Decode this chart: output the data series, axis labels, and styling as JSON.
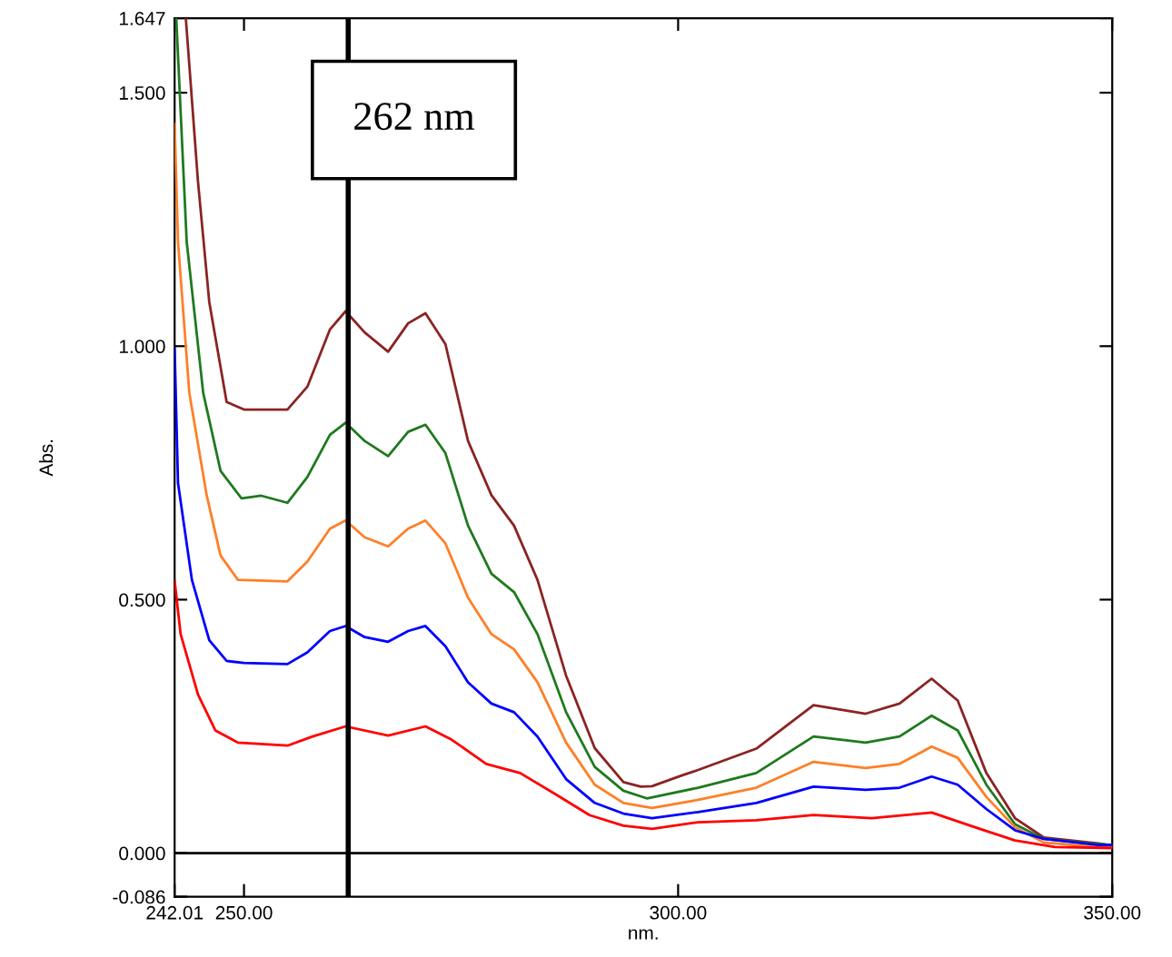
{
  "chart_data": {
    "type": "line",
    "xlabel": "nm.",
    "ylabel": "Abs.",
    "xlim": [
      242.01,
      350.0
    ],
    "ylim": [
      -0.086,
      1.647
    ],
    "xticks": [
      {
        "value": 242.01,
        "label": "242.01"
      },
      {
        "value": 250,
        "label": "250.00"
      },
      {
        "value": 300,
        "label": "300.00"
      },
      {
        "value": 350,
        "label": "350.00"
      }
    ],
    "yticks": [
      {
        "value": -0.086,
        "label": "-0.086"
      },
      {
        "value": 0,
        "label": "0.000"
      },
      {
        "value": 0.5,
        "label": "0.500"
      },
      {
        "value": 1.0,
        "label": "1.000"
      },
      {
        "value": 1.5,
        "label": "1.500"
      },
      {
        "value": 1.647,
        "label": "1.647"
      }
    ],
    "grid": false,
    "marker": "none",
    "line_style": "solid",
    "ref_lines": [
      {
        "axis": "x",
        "value": 262,
        "label": "262 nm",
        "color": "#000000"
      },
      {
        "axis": "y",
        "value": 0,
        "color": "#000000"
      }
    ],
    "series": [
      {
        "color": "#8b2323",
        "x": [
          243.3,
          244.7,
          246.0,
          248.0,
          250.0,
          255.0,
          257.3,
          259.9,
          261.7,
          263.9,
          266.6,
          268.9,
          270.9,
          273.2,
          275.8,
          278.5,
          281.1,
          283.8,
          287.1,
          290.4,
          293.7,
          295.7,
          297.0,
          300.4,
          302.3,
          309.0,
          315.6,
          321.6,
          325.5,
          329.2,
          332.2,
          335.5,
          338.8,
          342.1,
          348.4,
          350.0
        ],
        "values": [
          1.647,
          1.325,
          1.087,
          0.89,
          0.875,
          0.875,
          0.92,
          1.033,
          1.069,
          1.027,
          0.989,
          1.045,
          1.065,
          1.004,
          0.813,
          0.706,
          0.646,
          0.539,
          0.35,
          0.207,
          0.14,
          0.131,
          0.132,
          0.153,
          0.164,
          0.206,
          0.292,
          0.275,
          0.295,
          0.344,
          0.301,
          0.158,
          0.069,
          0.031,
          0.019,
          0.015
        ]
      },
      {
        "color": "#1e7a1e",
        "x": [
          242.2,
          243.4,
          245.3,
          247.3,
          249.7,
          252.0,
          255.0,
          257.3,
          259.9,
          261.7,
          263.9,
          266.6,
          268.9,
          270.9,
          273.2,
          275.8,
          278.5,
          281.1,
          283.8,
          287.1,
          290.4,
          293.7,
          296.4,
          302.3,
          309.0,
          315.6,
          321.6,
          325.5,
          329.2,
          332.2,
          335.5,
          338.8,
          342.1,
          348.4,
          350.0
        ],
        "values": [
          1.647,
          1.206,
          0.908,
          0.754,
          0.7,
          0.705,
          0.691,
          0.742,
          0.825,
          0.849,
          0.813,
          0.783,
          0.831,
          0.845,
          0.789,
          0.646,
          0.551,
          0.515,
          0.432,
          0.278,
          0.17,
          0.123,
          0.108,
          0.129,
          0.158,
          0.23,
          0.218,
          0.23,
          0.271,
          0.242,
          0.135,
          0.057,
          0.028,
          0.018,
          0.016
        ]
      },
      {
        "color": "#ff7f27",
        "x": [
          242.01,
          242.4,
          243.7,
          245.7,
          247.3,
          249.3,
          255.0,
          257.3,
          259.9,
          261.7,
          263.9,
          266.6,
          268.9,
          270.9,
          273.2,
          275.8,
          278.5,
          281.1,
          283.8,
          287.1,
          290.4,
          293.7,
          297.0,
          302.3,
          309.0,
          315.6,
          321.6,
          325.5,
          329.2,
          332.2,
          335.5,
          338.8,
          342.1,
          348.4,
          350.0
        ],
        "values": [
          1.438,
          1.206,
          0.908,
          0.706,
          0.587,
          0.539,
          0.536,
          0.575,
          0.64,
          0.656,
          0.623,
          0.605,
          0.64,
          0.656,
          0.611,
          0.504,
          0.432,
          0.402,
          0.337,
          0.218,
          0.135,
          0.099,
          0.089,
          0.105,
          0.129,
          0.18,
          0.168,
          0.176,
          0.21,
          0.188,
          0.111,
          0.051,
          0.021,
          0.012,
          0.011
        ]
      },
      {
        "color": "#0000ff",
        "x": [
          242.01,
          242.4,
          244.0,
          246.0,
          248.0,
          250.0,
          255.0,
          257.3,
          259.9,
          261.7,
          263.9,
          266.6,
          268.9,
          270.9,
          273.2,
          275.8,
          278.5,
          281.1,
          283.8,
          287.1,
          290.4,
          293.7,
          297.0,
          302.3,
          309.0,
          315.6,
          321.6,
          325.5,
          329.2,
          332.2,
          335.5,
          338.8,
          342.1,
          348.4,
          350.0
        ],
        "values": [
          0.995,
          0.73,
          0.539,
          0.42,
          0.379,
          0.375,
          0.373,
          0.396,
          0.438,
          0.448,
          0.426,
          0.417,
          0.438,
          0.448,
          0.408,
          0.337,
          0.295,
          0.278,
          0.23,
          0.146,
          0.099,
          0.078,
          0.069,
          0.081,
          0.099,
          0.131,
          0.125,
          0.129,
          0.151,
          0.135,
          0.087,
          0.045,
          0.028,
          0.016,
          0.016
        ]
      },
      {
        "color": "#ff0000",
        "x": [
          242.01,
          242.7,
          244.7,
          246.7,
          249.3,
          255.0,
          257.9,
          261.7,
          266.6,
          270.9,
          273.9,
          277.9,
          281.8,
          285.8,
          289.8,
          293.7,
          297.0,
          302.3,
          309.0,
          315.6,
          322.3,
          329.2,
          334.2,
          338.8,
          343.4,
          350.0
        ],
        "values": [
          0.537,
          0.432,
          0.313,
          0.242,
          0.218,
          0.212,
          0.23,
          0.25,
          0.232,
          0.25,
          0.224,
          0.176,
          0.158,
          0.117,
          0.075,
          0.054,
          0.048,
          0.061,
          0.065,
          0.075,
          0.069,
          0.08,
          0.051,
          0.025,
          0.012,
          0.01
        ]
      }
    ]
  }
}
